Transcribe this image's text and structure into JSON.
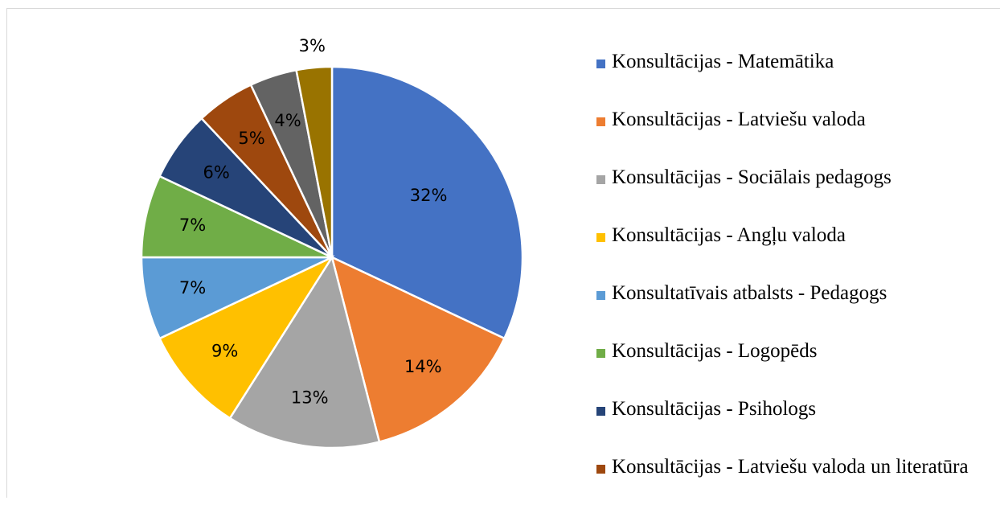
{
  "chart_data": {
    "type": "pie",
    "categories": [
      "Konsultācijas - Matemātika",
      "Konsultācijas - Latviešu valoda",
      "Konsultācijas - Sociālais pedagogs",
      "Konsultācijas - Angļu valoda",
      "Konsultatīvais atbalsts - Pedagogs",
      "Konsultācijas - Logopēds",
      "Konsultācijas - Psihologs",
      "Konsultācijas - Latviešu valoda un literatūra",
      null,
      null
    ],
    "values": [
      32,
      14,
      13,
      9,
      7,
      7,
      6,
      5,
      4,
      3
    ],
    "value_labels": [
      "32%",
      "14%",
      "13%",
      "9%",
      "7%",
      "7%",
      "6%",
      "5%",
      "4%",
      "3%"
    ],
    "colors": [
      "#4472c4",
      "#ed7d31",
      "#a5a5a5",
      "#ffc000",
      "#5b9bd5",
      "#70ad47",
      "#264478",
      "#9e480e",
      "#636363",
      "#997300"
    ],
    "legend": "right"
  }
}
